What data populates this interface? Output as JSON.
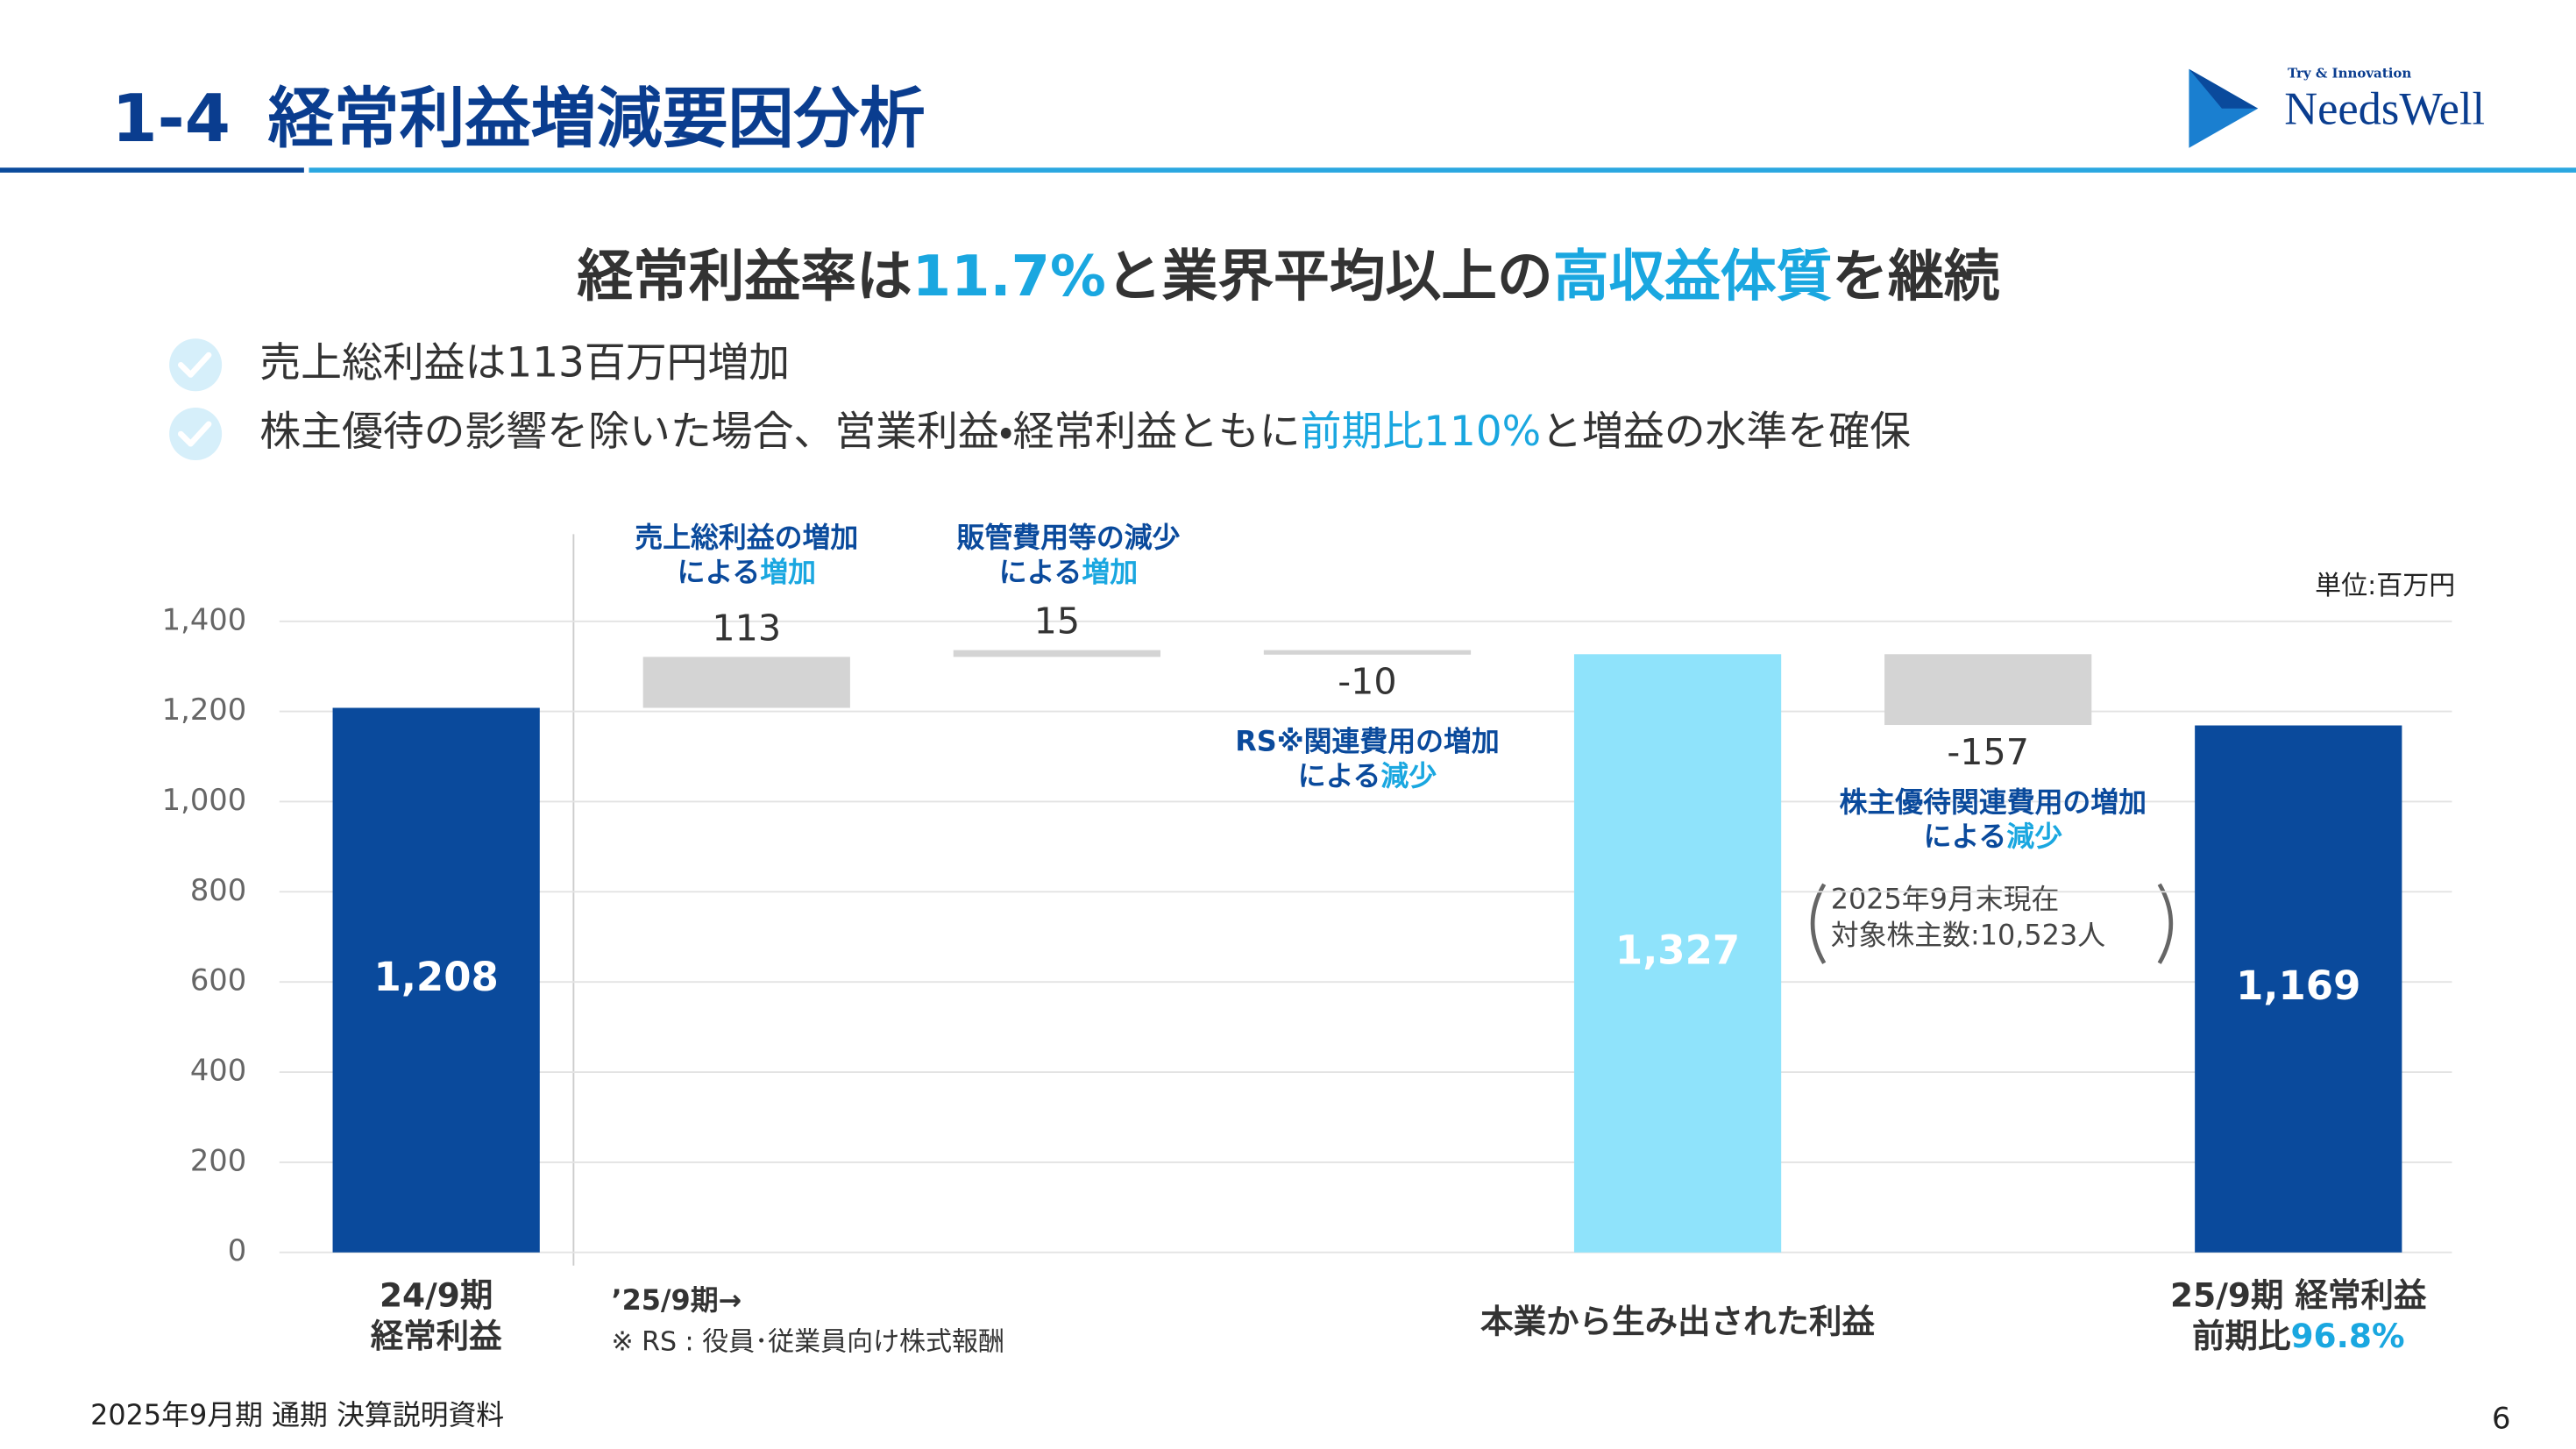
{
  "header": {
    "number": "1-4",
    "title": "経常利益増減要因分析",
    "logo_tagline": "Try & Innovation",
    "logo_name": "NeedsWell"
  },
  "headline": [
    "経常利益率は",
    "11.7%",
    "と業界平均以上の",
    "高収益体質",
    "を継続"
  ],
  "bullets": [
    [
      "売上総利益は113百万円増加"
    ],
    [
      "株主優待の影響を除いた場合、営業利益・経常利益ともに",
      "前期比110%",
      "と増益の水準を確保"
    ]
  ],
  "chart_data": {
    "type": "waterfall",
    "unit": "単位:百万円",
    "categories": [
      [
        [
          "24/9期"
        ],
        [
          "経常利益"
        ]
      ],
      null,
      null,
      null,
      [
        [
          "本業から生み出された利益"
        ]
      ],
      null,
      [
        [
          "25/9期 経常利益"
        ],
        [
          "前期比",
          "96.8%"
        ]
      ]
    ],
    "values": [
      1208,
      113,
      15,
      -10,
      1327,
      -157,
      1169
    ],
    "value_labels": [
      "1,208",
      "113",
      "15",
      "-10",
      "1,327",
      "-157",
      "1,169"
    ],
    "bar_kinds": [
      "total",
      "delta",
      "delta",
      "delta",
      "total",
      "delta",
      "total"
    ],
    "colors": [
      "#0a4a9c",
      "#d4d4d4",
      "#d4d4d4",
      "#d4d4d4",
      "#8fe3fb",
      "#d4d4d4",
      "#0a4a9c"
    ],
    "ylim": [
      0,
      1400
    ],
    "yticks": [
      0,
      200,
      400,
      600,
      800,
      {
        "value": 1000,
        "label": "1,000"
      },
      {
        "value": 1200,
        "label": "1,200"
      },
      {
        "value": 1400,
        "label": "1,400"
      }
    ],
    "grid": true,
    "annotations": [
      [
        [
          "売上総利益の増加"
        ],
        [
          "による",
          "増加"
        ]
      ],
      [
        [
          "販管費用等の減少"
        ],
        [
          "による",
          "増加"
        ]
      ],
      [
        [
          "RS※関連費用の増加"
        ],
        [
          "による",
          "減少"
        ]
      ],
      [
        [
          "株主優待関連費用の増加"
        ],
        [
          "による",
          "減少"
        ]
      ]
    ],
    "shareholder_note": [
      "2025年9月末現在",
      "対象株主数:10,523人"
    ],
    "period_note": "’25/9期→",
    "footnote": "※ RS : 役員･従業員向け株式報酬"
  },
  "footer": {
    "source": "2025年9月期 通期 決算説明資料",
    "page": "6"
  }
}
